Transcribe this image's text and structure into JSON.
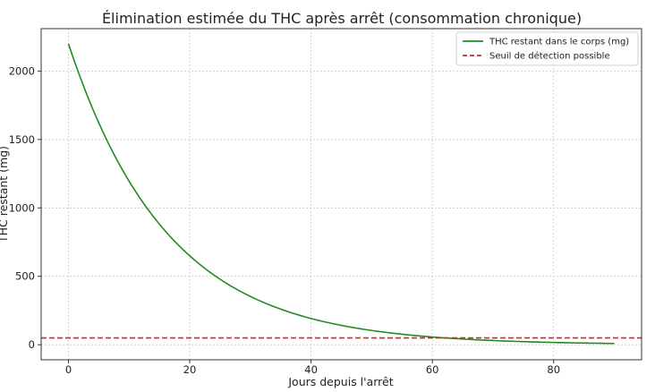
{
  "chart_data": {
    "type": "line",
    "title": "Élimination estimée du THC après arrêt (consommation chronique)",
    "xlabel": "Jours depuis l'arrêt",
    "ylabel": "THC restant (mg)",
    "xlim": [
      -4.5,
      94.5
    ],
    "ylim": [
      -110,
      2310
    ],
    "x_ticks": [
      0,
      20,
      40,
      60,
      80
    ],
    "y_ticks": [
      0,
      500,
      1000,
      1500,
      2000
    ],
    "grid": true,
    "legend_position": "top-right",
    "series": [
      {
        "name": "THC restant dans le corps (mg)",
        "color": "#228B22",
        "style": "solid",
        "initial_value": 2200,
        "decay_per_day": 0.061,
        "x": [
          0,
          5,
          10,
          15,
          20,
          25,
          30,
          35,
          40,
          45,
          50,
          55,
          60,
          65,
          70,
          75,
          80,
          85,
          90
        ],
        "values": [
          2200,
          1620,
          1192,
          877,
          646,
          475,
          350,
          258,
          190,
          140,
          103,
          76,
          56,
          41,
          30,
          22,
          16,
          12,
          9
        ]
      },
      {
        "name": "Seuil de détection possible",
        "color": "#d62728",
        "style": "dashed",
        "value": 50
      }
    ]
  }
}
